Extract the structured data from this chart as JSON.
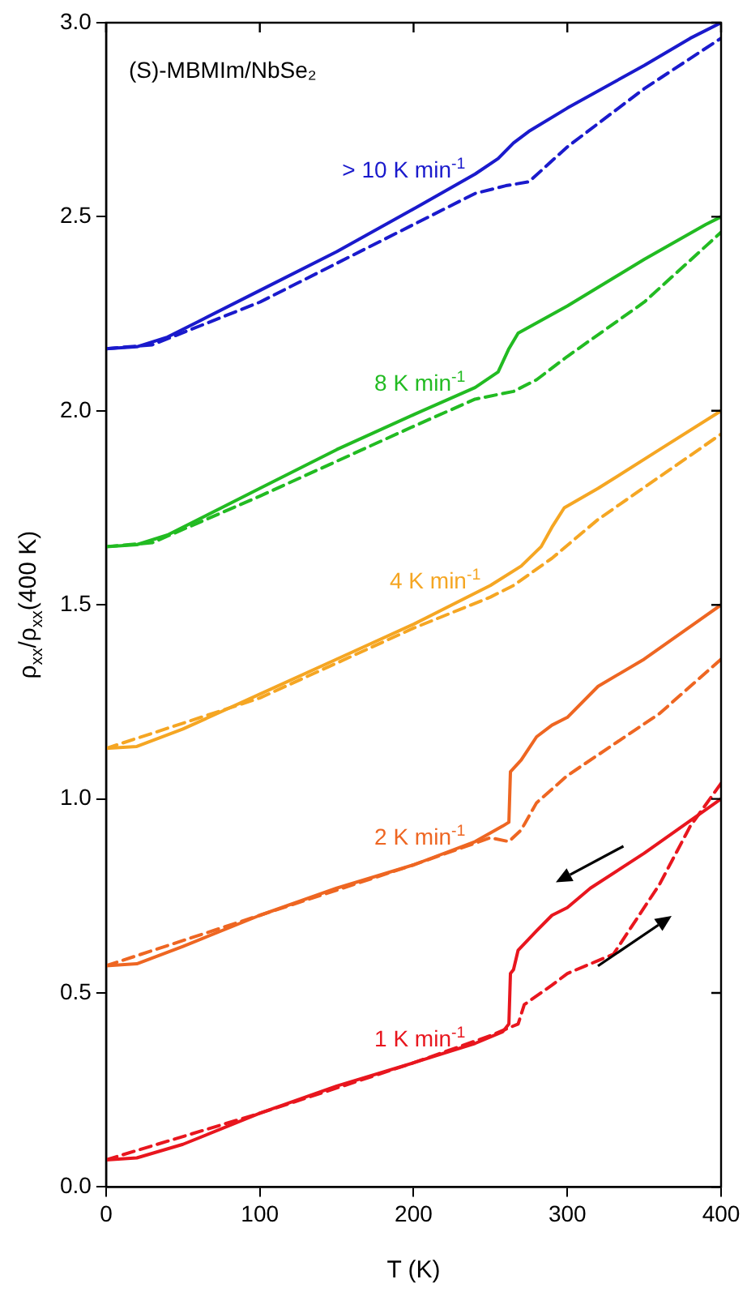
{
  "chart_data": {
    "type": "line",
    "title": "(S)-MBMIm/NbSe₂",
    "xlabel": "T (K)",
    "ylabel": "ρ$_{xx}$/ρ$_{xx}$(400 K)",
    "xlim": [
      0,
      400
    ],
    "xticks": [
      0,
      100,
      200,
      300,
      400
    ],
    "ylim": [
      0,
      3
    ],
    "yticks": [
      {
        "value": 0,
        "label": "0.0"
      },
      {
        "value": 0.5,
        "label": "0.5"
      },
      {
        "value": 1,
        "label": "1.0"
      },
      {
        "value": 1.5,
        "label": "1.5"
      },
      {
        "value": 2,
        "label": "2.0"
      },
      {
        "value": 2.5,
        "label": "2.5"
      },
      {
        "value": 3,
        "label": "3.0"
      }
    ],
    "marker": "none",
    "series": [
      {
        "name": "> 10 K min$^{-1}$",
        "color": "#1a1acc",
        "line_style": "solid",
        "x": [
          0,
          20,
          40,
          60,
          100,
          150,
          200,
          240,
          255,
          265,
          275,
          300,
          350,
          380,
          400
        ],
        "values": [
          2.16,
          2.165,
          2.19,
          2.23,
          2.31,
          2.41,
          2.52,
          2.61,
          2.65,
          2.69,
          2.72,
          2.78,
          2.89,
          2.96,
          3.0
        ]
      },
      {
        "color": "#1a1acc",
        "line_style": "dashed",
        "x": [
          0,
          30,
          100,
          200,
          240,
          260,
          275,
          300,
          350,
          400
        ],
        "values": [
          2.16,
          2.17,
          2.28,
          2.48,
          2.56,
          2.58,
          2.59,
          2.68,
          2.83,
          2.96
        ]
      },
      {
        "name": "8 K min$^{-1}$",
        "color": "#22bb22",
        "line_style": "solid",
        "x": [
          0,
          20,
          40,
          100,
          150,
          200,
          240,
          255,
          262,
          268,
          300,
          350,
          390,
          400
        ],
        "values": [
          1.65,
          1.655,
          1.68,
          1.8,
          1.9,
          1.99,
          2.06,
          2.1,
          2.16,
          2.2,
          2.27,
          2.39,
          2.48,
          2.5
        ]
      },
      {
        "color": "#22bb22",
        "line_style": "dashed",
        "x": [
          0,
          30,
          100,
          200,
          240,
          265,
          280,
          300,
          350,
          400
        ],
        "values": [
          1.65,
          1.66,
          1.78,
          1.96,
          2.03,
          2.05,
          2.08,
          2.14,
          2.28,
          2.46
        ]
      },
      {
        "name": "4 K min$^{-1}$",
        "color": "#f5a623",
        "line_style": "solid",
        "x": [
          0,
          20,
          50,
          100,
          150,
          200,
          250,
          270,
          283,
          290,
          298,
          320,
          360,
          400
        ],
        "values": [
          1.13,
          1.135,
          1.18,
          1.27,
          1.36,
          1.45,
          1.55,
          1.6,
          1.65,
          1.7,
          1.75,
          1.8,
          1.9,
          2.0
        ]
      },
      {
        "color": "#f5a623",
        "line_style": "dashed",
        "x": [
          0,
          100,
          200,
          250,
          265,
          290,
          320,
          360,
          400
        ],
        "values": [
          1.13,
          1.26,
          1.44,
          1.52,
          1.55,
          1.62,
          1.72,
          1.83,
          1.94
        ]
      },
      {
        "name": "2 K min$^{-1}$",
        "color": "#ee6622",
        "line_style": "solid",
        "x": [
          0,
          20,
          50,
          100,
          150,
          200,
          240,
          258,
          262,
          263,
          270,
          280,
          290,
          300,
          320,
          350,
          400
        ],
        "values": [
          0.57,
          0.575,
          0.62,
          0.7,
          0.77,
          0.83,
          0.89,
          0.93,
          0.94,
          1.07,
          1.1,
          1.16,
          1.19,
          1.21,
          1.29,
          1.36,
          1.5
        ]
      },
      {
        "color": "#ee6622",
        "line_style": "dashed",
        "x": [
          0,
          100,
          200,
          250,
          262,
          270,
          280,
          300,
          330,
          360,
          400
        ],
        "values": [
          0.57,
          0.7,
          0.83,
          0.9,
          0.89,
          0.92,
          0.99,
          1.06,
          1.14,
          1.22,
          1.36
        ]
      },
      {
        "name": "1 K min$^{-1}$",
        "color": "#e8161e",
        "line_style": "solid",
        "x": [
          0,
          20,
          50,
          100,
          150,
          200,
          240,
          258,
          262,
          263,
          265,
          268,
          280,
          290,
          300,
          315,
          350,
          400
        ],
        "values": [
          0.07,
          0.075,
          0.11,
          0.19,
          0.26,
          0.32,
          0.37,
          0.4,
          0.42,
          0.55,
          0.56,
          0.61,
          0.66,
          0.7,
          0.72,
          0.77,
          0.86,
          1.0
        ]
      },
      {
        "color": "#e8161e",
        "line_style": "dashed",
        "x": [
          0,
          100,
          200,
          250,
          268,
          272,
          290,
          300,
          330,
          360,
          380,
          400
        ],
        "values": [
          0.07,
          0.19,
          0.32,
          0.39,
          0.42,
          0.47,
          0.52,
          0.55,
          0.6,
          0.78,
          0.93,
          1.04
        ]
      }
    ]
  }
}
